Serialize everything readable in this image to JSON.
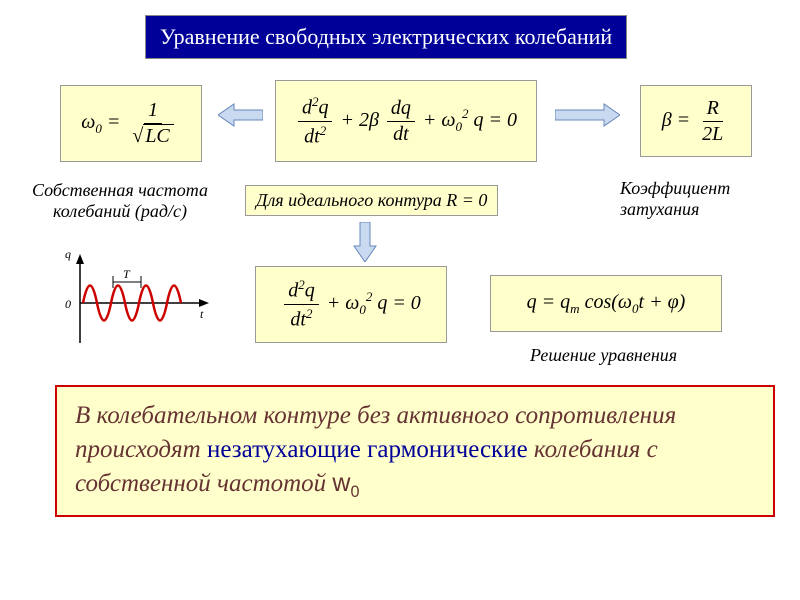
{
  "title": "Уравнение свободных электрических колебаний",
  "formulas": {
    "omega0_html": "<i>ω</i><sub>0</sub> = <span class='frac'><span class='num'>1</span><span class='den'>√<span class='sqrt'><i>LC</i></span></span></span>",
    "main_eq_html": "<span class='frac'><span class='num'><i>d</i><sup>2</sup><i>q</i></span><span class='den'><i>dt</i><sup>2</sup></span></span> + 2<i>β</i> <span class='frac'><span class='num'><i>dq</i></span><span class='den'><i>dt</i></span></span> + <i>ω</i><sub>0</sub><sup>2</sup> <i>q</i> = 0",
    "beta_html": "<i>β</i> = <span class='frac'><span class='num'><i>R</i></span><span class='den'>2<i>L</i></span></span>",
    "ideal_html": "Для идеального контура R = 0",
    "ideal_eq_html": "<span class='frac'><span class='num'><i>d</i><sup>2</sup><i>q</i></span><span class='den'><i>dt</i><sup>2</sup></span></span> + <i>ω</i><sub>0</sub><sup>2</sup> <i>q</i> = 0",
    "solution_html": "<i>q</i> = <i>q<sub>m</sub></i> cos(<i>ω</i><sub>0</sub><i>t</i> + <i>φ</i>)"
  },
  "labels": {
    "natural_freq_html": "Собственная частота<br>колебаний (рад/с)",
    "damping_html": "Коэффициент<br>затухания",
    "solution_label": "Решение уравнения"
  },
  "conclusion_html": "В колебательном контуре без активного сопротивления происходят <span style='color:#000099;font-style:normal'>незатухающие гармонические</span> колебания с собственной частотой <span style='font-family:sans-serif;font-style:normal'>w<sub>0</sub></span>",
  "chart": {
    "q_label": "q",
    "t_label": "t",
    "zero_label": "0",
    "T_label": "T",
    "wave_color": "#cc0000",
    "axis_color": "#000000",
    "periods": 3.5,
    "amplitude": 28,
    "width": 140,
    "height": 90
  },
  "colors": {
    "title_bg": "#000099",
    "box_bg": "#ffffcc",
    "conclusion_border": "#cc0000",
    "arrow_fill": "#c9d9f0",
    "arrow_stroke": "#6688bb"
  }
}
